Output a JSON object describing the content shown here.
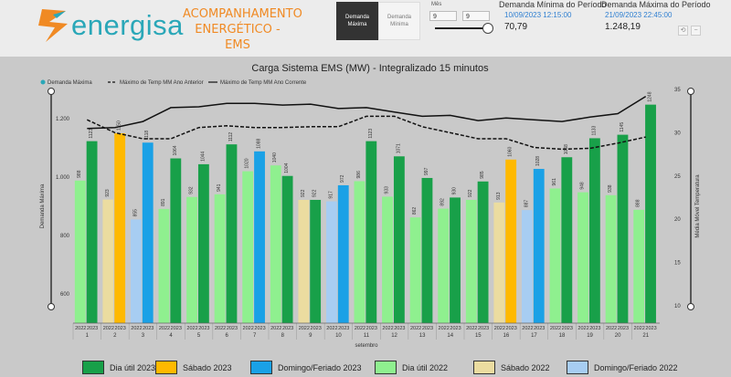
{
  "header": {
    "brand": "energisa",
    "report_title_line1": "ACOMPANHAMENTO",
    "report_title_line2": "ENERGÉTICO - EMS",
    "toggle_active": "Demanda Máxima",
    "toggle_inactive": "Demanda Mínima",
    "month_label": "Mês",
    "month_from": "9",
    "month_to": "9",
    "month_slider_value": 9,
    "min_title": "Demanda Mínima do Período",
    "min_date": "10/09/2023 12:15:00",
    "min_value": "70,79",
    "max_title": "Demanda Máxima do Período",
    "max_date": "21/09/2023 22:45:00",
    "max_value": "1.248,19"
  },
  "colors": {
    "dia_util_2023": "#18a049",
    "sabado_2023": "#ffb900",
    "domingo_2023": "#1aa1e6",
    "dia_util_2022": "#8ff08f",
    "sabado_2022": "#ebdca0",
    "domingo_2022": "#a7cdf2"
  },
  "chart_data": {
    "type": "bar",
    "title": "Carga Sistema EMS (MW) - Integralizado 15 minutos",
    "ylabel": "Demanda Máxima",
    "y2label": "Média Móvel Temperatura",
    "xlabel": "setembro",
    "ylim": [
      500,
      1300
    ],
    "y2lim": [
      8,
      35
    ],
    "yticks": [
      "600",
      "800",
      "1.000",
      "1.200"
    ],
    "y2ticks": [
      "10",
      "15",
      "20",
      "25",
      "30",
      "35"
    ],
    "top_legend": [
      "Demanda Máxima",
      "Máximo de Temp MM Ano Anterior",
      "Máximo de Temp MM Ano Corrente"
    ],
    "days": [
      "1",
      "2",
      "3",
      "4",
      "5",
      "6",
      "7",
      "8",
      "9",
      "10",
      "11",
      "12",
      "13",
      "14",
      "15",
      "16",
      "17",
      "18",
      "19",
      "20",
      "21"
    ],
    "year_labels": [
      "2022",
      "2023"
    ],
    "values_2022": [
      988,
      923,
      855,
      891,
      932,
      941,
      1020,
      1040,
      922,
      917,
      986,
      933,
      862,
      892,
      922,
      913,
      887,
      961,
      948,
      938,
      888
    ],
    "values_2023": [
      1123,
      1150,
      1118,
      1064,
      1044,
      1112,
      1088,
      1004,
      922,
      972,
      1123,
      1071,
      997,
      930,
      985,
      1060,
      1028,
      1068,
      1133,
      1145,
      1248
    ],
    "labels_2022": [
      "988",
      "923",
      "855",
      "891",
      "932",
      "941",
      "1020",
      "1040",
      "922",
      "917",
      "986",
      "933",
      "862",
      "892",
      "922",
      "913",
      "887",
      "961",
      "948",
      "938",
      "888"
    ],
    "labels_2023": [
      "1123",
      "1150",
      "1118",
      "1064",
      "1044",
      "1112",
      "1088",
      "1004",
      "922",
      "972",
      "1123",
      "1071",
      "997",
      "930",
      "985",
      "1060",
      "1028",
      "1068",
      "1133",
      "1145",
      "1248"
    ],
    "type_2022": [
      "dia_util_2022",
      "sabado_2022",
      "domingo_2022",
      "dia_util_2022",
      "dia_util_2022",
      "dia_util_2022",
      "dia_util_2022",
      "dia_util_2022",
      "sabado_2022",
      "domingo_2022",
      "dia_util_2022",
      "dia_util_2022",
      "dia_util_2022",
      "dia_util_2022",
      "dia_util_2022",
      "sabado_2022",
      "domingo_2022",
      "dia_util_2022",
      "dia_util_2022",
      "dia_util_2022",
      "dia_util_2022"
    ],
    "type_2023": [
      "dia_util_2023",
      "sabado_2023",
      "domingo_2023",
      "dia_util_2023",
      "dia_util_2023",
      "dia_util_2023",
      "domingo_2023",
      "dia_util_2023",
      "dia_util_2023",
      "domingo_2023",
      "dia_util_2023",
      "dia_util_2023",
      "dia_util_2023",
      "dia_util_2023",
      "dia_util_2023",
      "sabado_2023",
      "domingo_2023",
      "dia_util_2023",
      "dia_util_2023",
      "dia_util_2023",
      "dia_util_2023"
    ],
    "temp_prev_year": [
      31.5,
      30.0,
      29.3,
      29.3,
      30.6,
      30.8,
      30.6,
      30.6,
      30.7,
      30.7,
      31.9,
      31.9,
      30.7,
      30.0,
      29.3,
      29.3,
      28.3,
      28.1,
      28.2,
      28.8,
      29.5
    ],
    "temp_curr_year": [
      30.5,
      30.6,
      31.3,
      32.9,
      33.0,
      33.4,
      33.4,
      33.2,
      33.3,
      32.8,
      32.9,
      32.4,
      31.9,
      32.0,
      31.4,
      31.7,
      31.5,
      31.3,
      31.8,
      32.2,
      34.2
    ],
    "legend": [
      {
        "key": "dia_util_2023",
        "label": "Dia útil 2023"
      },
      {
        "key": "sabado_2023",
        "label": "Sábado 2023"
      },
      {
        "key": "domingo_2023",
        "label": "Domingo/Feriado 2023"
      },
      {
        "key": "dia_util_2022",
        "label": "Dia útil 2022"
      },
      {
        "key": "sabado_2022",
        "label": "Sábado 2022"
      },
      {
        "key": "domingo_2022",
        "label": "Domingo/Feriado 2022"
      }
    ]
  }
}
